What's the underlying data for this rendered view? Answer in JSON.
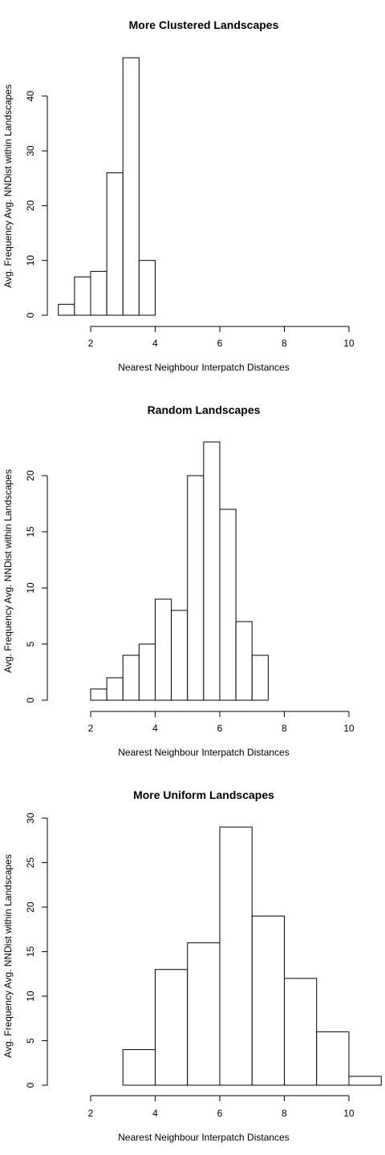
{
  "chart_data": [
    {
      "type": "bar",
      "title": "More Clustered Landscapes",
      "xlabel": "Nearest Neighbour Interpatch Distances",
      "ylabel": "Avg. Frequency Avg. NNDist within Landscapes",
      "xlim": [
        1,
        10
      ],
      "ylim": [
        0,
        47
      ],
      "xticks": [
        2,
        4,
        6,
        8,
        10
      ],
      "yticks": [
        0,
        10,
        20,
        30,
        40
      ],
      "bins": [
        {
          "x0": 1.0,
          "x1": 1.5,
          "value": 2
        },
        {
          "x0": 1.5,
          "x1": 2.0,
          "value": 7
        },
        {
          "x0": 2.0,
          "x1": 2.5,
          "value": 8
        },
        {
          "x0": 2.5,
          "x1": 3.0,
          "value": 26
        },
        {
          "x0": 3.0,
          "x1": 3.5,
          "value": 47
        },
        {
          "x0": 3.5,
          "x1": 4.0,
          "value": 10
        }
      ]
    },
    {
      "type": "bar",
      "title": "Random Landscapes",
      "xlabel": "Nearest Neighbour Interpatch Distances",
      "ylabel": "Avg. Frequency Avg. NNDist within Landscapes",
      "xlim": [
        2,
        10
      ],
      "ylim": [
        0,
        23
      ],
      "xticks": [
        2,
        4,
        6,
        8,
        10
      ],
      "yticks": [
        0,
        5,
        10,
        15,
        20
      ],
      "bins": [
        {
          "x0": 2.0,
          "x1": 2.5,
          "value": 1
        },
        {
          "x0": 2.5,
          "x1": 3.0,
          "value": 2
        },
        {
          "x0": 3.0,
          "x1": 3.5,
          "value": 4
        },
        {
          "x0": 3.5,
          "x1": 4.0,
          "value": 5
        },
        {
          "x0": 4.0,
          "x1": 4.5,
          "value": 9
        },
        {
          "x0": 4.5,
          "x1": 5.0,
          "value": 8
        },
        {
          "x0": 5.0,
          "x1": 5.5,
          "value": 20
        },
        {
          "x0": 5.5,
          "x1": 6.0,
          "value": 23
        },
        {
          "x0": 6.0,
          "x1": 6.5,
          "value": 17
        },
        {
          "x0": 6.5,
          "x1": 7.0,
          "value": 7
        },
        {
          "x0": 7.0,
          "x1": 7.5,
          "value": 4
        }
      ]
    },
    {
      "type": "bar",
      "title": "More Uniform Landscapes",
      "xlabel": "Nearest Neighbour Interpatch Distances",
      "ylabel": "Avg. Frequency Avg. NNDist within Landscapes",
      "xlim": [
        2,
        10
      ],
      "ylim": [
        0,
        30
      ],
      "xticks": [
        2,
        4,
        6,
        8,
        10
      ],
      "yticks": [
        0,
        5,
        10,
        15,
        20,
        25,
        30
      ],
      "bins": [
        {
          "x0": 3,
          "x1": 4,
          "value": 4
        },
        {
          "x0": 4,
          "x1": 5,
          "value": 13
        },
        {
          "x0": 5,
          "x1": 6,
          "value": 16
        },
        {
          "x0": 6,
          "x1": 7,
          "value": 29
        },
        {
          "x0": 7,
          "x1": 8,
          "value": 19
        },
        {
          "x0": 8,
          "x1": 9,
          "value": 12
        },
        {
          "x0": 9,
          "x1": 10,
          "value": 6
        },
        {
          "x0": 10,
          "x1": 11,
          "value": 1
        }
      ]
    }
  ]
}
